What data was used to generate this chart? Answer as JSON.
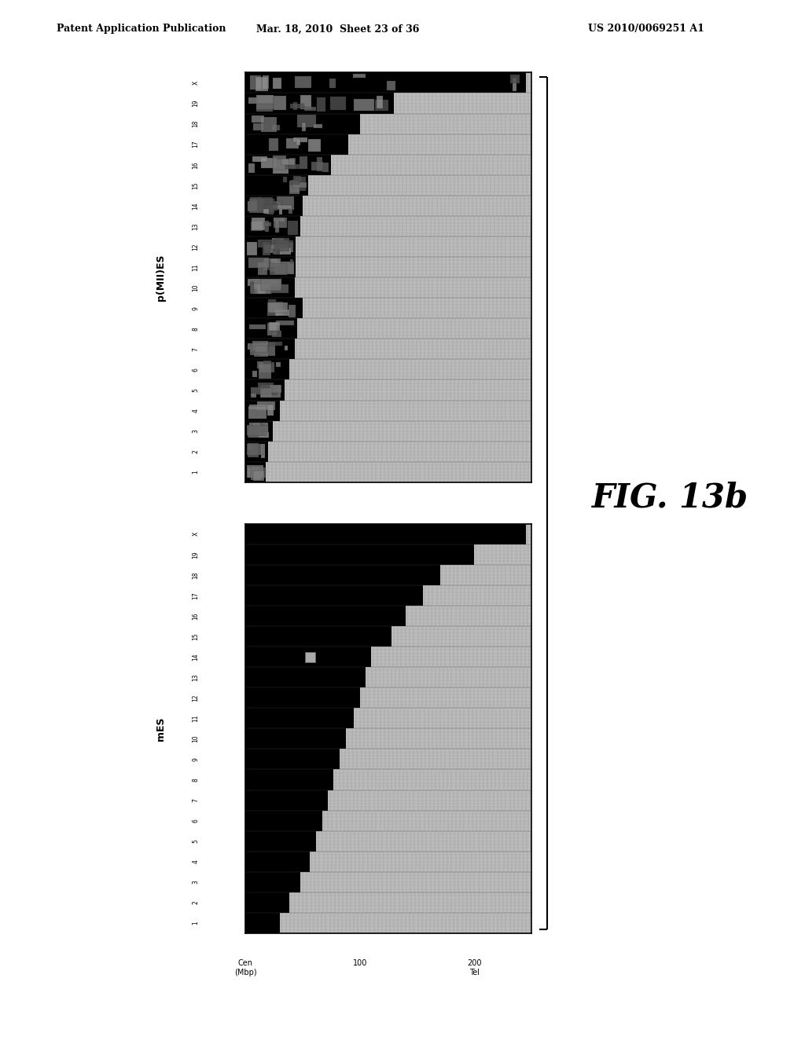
{
  "title_left": "Patent Application Publication",
  "title_mid": "Mar. 18, 2010  Sheet 23 of 36",
  "title_right": "US 2010/0069251 A1",
  "fig_label": "FIG. 13b",
  "panel_top_ylabel": "p(MII)ES",
  "panel_bot_ylabel": "mES",
  "chromosomes_top_to_bot": [
    "X",
    "19",
    "18",
    "17",
    "16",
    "15",
    "14",
    "13",
    "12",
    "11",
    "10",
    "9",
    "8",
    "7",
    "6",
    "5",
    "4",
    "3",
    "2",
    "1"
  ],
  "n_chrom": 20,
  "x_max": 250,
  "loh_boundary_top": [
    245,
    130,
    100,
    90,
    75,
    55,
    50,
    48,
    44,
    44,
    43,
    50,
    45,
    43,
    38,
    34,
    30,
    24,
    20,
    18
  ],
  "loh_boundary_bot": [
    245,
    200,
    170,
    155,
    140,
    128,
    110,
    105,
    100,
    95,
    88,
    82,
    77,
    72,
    67,
    62,
    56,
    48,
    38,
    30
  ],
  "gray_color": "#bbbbbb",
  "hatch_color": "#888888",
  "black_color": "#000000",
  "scattered_color_choices": [
    "#606060",
    "#707070",
    "#808080",
    "#909090",
    "#505050"
  ],
  "bracket_linewidth": 2.0,
  "fig_label_fontsize": 30,
  "header_fontsize": 9,
  "chrom_label_fontsize": 5.5,
  "ylabel_fontsize": 9
}
